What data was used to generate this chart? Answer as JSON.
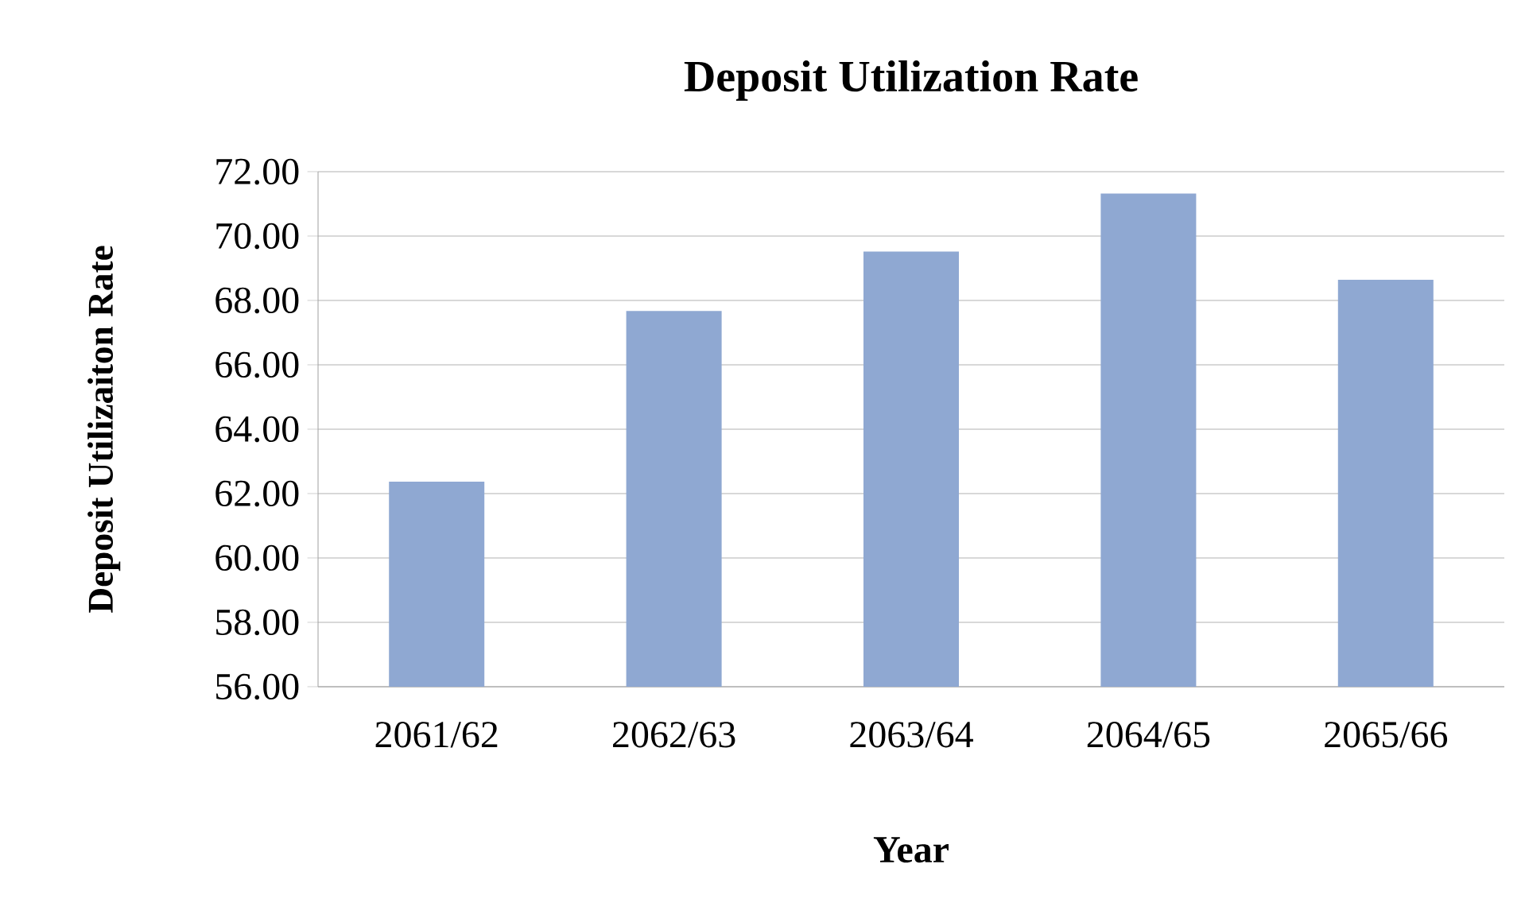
{
  "chart_data": {
    "type": "bar",
    "title": "Deposit Utilization  Rate",
    "xlabel": "Year",
    "ylabel": "Deposit Utilizaiton Rate",
    "categories": [
      "2061/62",
      "2062/63",
      "2063/64",
      "2064/65",
      "2065/66"
    ],
    "values": [
      62.37,
      67.67,
      69.52,
      71.32,
      68.64
    ],
    "color": "#8fa8d2",
    "ylim": [
      56,
      72
    ],
    "yticks": [
      {
        "value": 56,
        "label": "56.00"
      },
      {
        "value": 58,
        "label": "58.00"
      },
      {
        "value": 60,
        "label": "60.00"
      },
      {
        "value": 62,
        "label": "62.00"
      },
      {
        "value": 64,
        "label": "64.00"
      },
      {
        "value": 66,
        "label": "66.00"
      },
      {
        "value": 68,
        "label": "68.00"
      },
      {
        "value": 70,
        "label": "70.00"
      },
      {
        "value": 72,
        "label": "72.00"
      }
    ],
    "grid": "y"
  }
}
